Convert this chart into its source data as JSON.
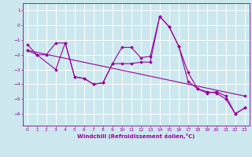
{
  "xlabel": "Windchill (Refroidissement éolien,°C)",
  "bg_color": "#cce8ee",
  "grid_color": "#ffffff",
  "line_color": "#990099",
  "marker": "D",
  "markersize": 1.8,
  "linewidth": 0.8,
  "xlim": [
    -0.5,
    23.5
  ],
  "ylim": [
    -6.8,
    1.5
  ],
  "xticks": [
    0,
    1,
    2,
    3,
    4,
    5,
    6,
    7,
    8,
    9,
    10,
    11,
    12,
    13,
    14,
    15,
    16,
    17,
    18,
    19,
    20,
    21,
    22,
    23
  ],
  "yticks": [
    1,
    0,
    -1,
    -2,
    -3,
    -4,
    -5,
    -6
  ],
  "tick_labelsize": 4.2,
  "xlabel_fontsize": 5.0,
  "series": [
    [
      [
        0,
        -1.3
      ],
      [
        1,
        -2.0
      ],
      [
        2,
        -2.0
      ],
      [
        3,
        -1.2
      ],
      [
        4,
        -1.2
      ],
      [
        5,
        -3.5
      ],
      [
        6,
        -3.6
      ],
      [
        7,
        -4.0
      ],
      [
        8,
        -3.9
      ],
      [
        9,
        -2.6
      ],
      [
        10,
        -1.5
      ],
      [
        11,
        -1.5
      ],
      [
        12,
        -2.2
      ],
      [
        13,
        -2.1
      ],
      [
        14,
        0.6
      ],
      [
        15,
        -0.1
      ],
      [
        16,
        -1.4
      ],
      [
        17,
        -3.2
      ],
      [
        18,
        -4.3
      ],
      [
        19,
        -4.6
      ],
      [
        20,
        -4.5
      ],
      [
        21,
        -4.8
      ],
      [
        22,
        -6.0
      ],
      [
        23,
        -5.6
      ]
    ],
    [
      [
        0,
        -1.7
      ],
      [
        1,
        -2.0
      ],
      [
        3,
        -3.0
      ],
      [
        4,
        -1.2
      ],
      [
        5,
        -3.5
      ],
      [
        6,
        -3.6
      ],
      [
        7,
        -4.0
      ],
      [
        8,
        -3.9
      ],
      [
        9,
        -2.6
      ],
      [
        10,
        -2.6
      ],
      [
        11,
        -2.6
      ],
      [
        12,
        -2.5
      ],
      [
        13,
        -2.5
      ],
      [
        14,
        0.6
      ],
      [
        15,
        -0.1
      ],
      [
        16,
        -1.4
      ],
      [
        17,
        -3.8
      ],
      [
        18,
        -4.3
      ],
      [
        19,
        -4.5
      ],
      [
        20,
        -4.6
      ],
      [
        21,
        -5.0
      ],
      [
        22,
        -6.0
      ],
      [
        23,
        -5.6
      ]
    ],
    [
      [
        0,
        -1.7
      ],
      [
        23,
        -4.8
      ]
    ]
  ]
}
